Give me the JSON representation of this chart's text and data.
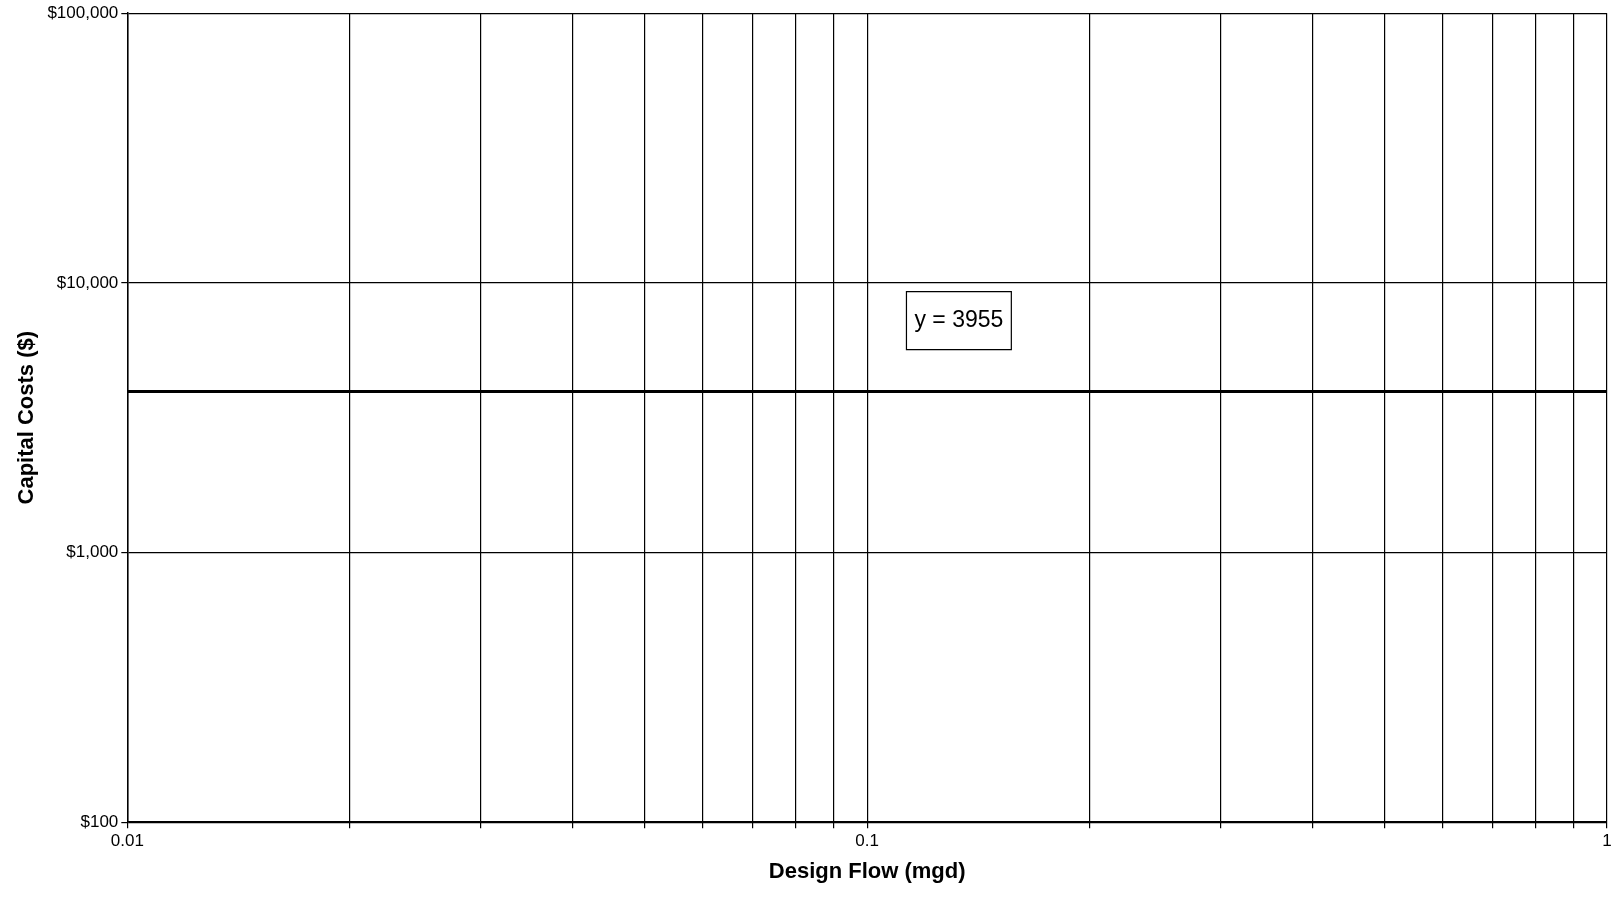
{
  "chart_data": {
    "type": "line",
    "xlabel": "Design Flow (mgd)",
    "ylabel": "Capital Costs ($)",
    "x": [
      0.01,
      1
    ],
    "series": [
      {
        "color": "#000000",
        "values": [
          3955,
          3955
        ]
      }
    ],
    "xlim": [
      0.01,
      1
    ],
    "ylim": [
      100,
      100000
    ],
    "xticks": [
      0.01,
      {
        "value": 0.02,
        "label": null
      },
      {
        "value": 0.03,
        "label": null
      },
      {
        "value": 0.04,
        "label": null
      },
      {
        "value": 0.05,
        "label": null
      },
      {
        "value": 0.06,
        "label": null
      },
      {
        "value": 0.07,
        "label": null
      },
      {
        "value": 0.08,
        "label": null
      },
      {
        "value": 0.09,
        "label": null
      },
      0.1,
      {
        "value": 0.2,
        "label": null
      },
      {
        "value": 0.3,
        "label": null
      },
      {
        "value": 0.4,
        "label": null
      },
      {
        "value": 0.5,
        "label": null
      },
      {
        "value": 0.6,
        "label": null
      },
      {
        "value": 0.7,
        "label": null
      },
      {
        "value": 0.8,
        "label": null
      },
      {
        "value": 0.9,
        "label": null
      },
      1
    ],
    "yticks": [
      {
        "value": 100,
        "label": "$100"
      },
      {
        "value": 1000,
        "label": "$1,000"
      },
      {
        "value": 10000,
        "label": "$10,000"
      },
      {
        "value": 100000,
        "label": "$100,000"
      }
    ],
    "log": "xy",
    "grid": true,
    "legend": false,
    "marker": "none",
    "line_style": "solid",
    "annotations": [
      "y = 3955"
    ]
  }
}
